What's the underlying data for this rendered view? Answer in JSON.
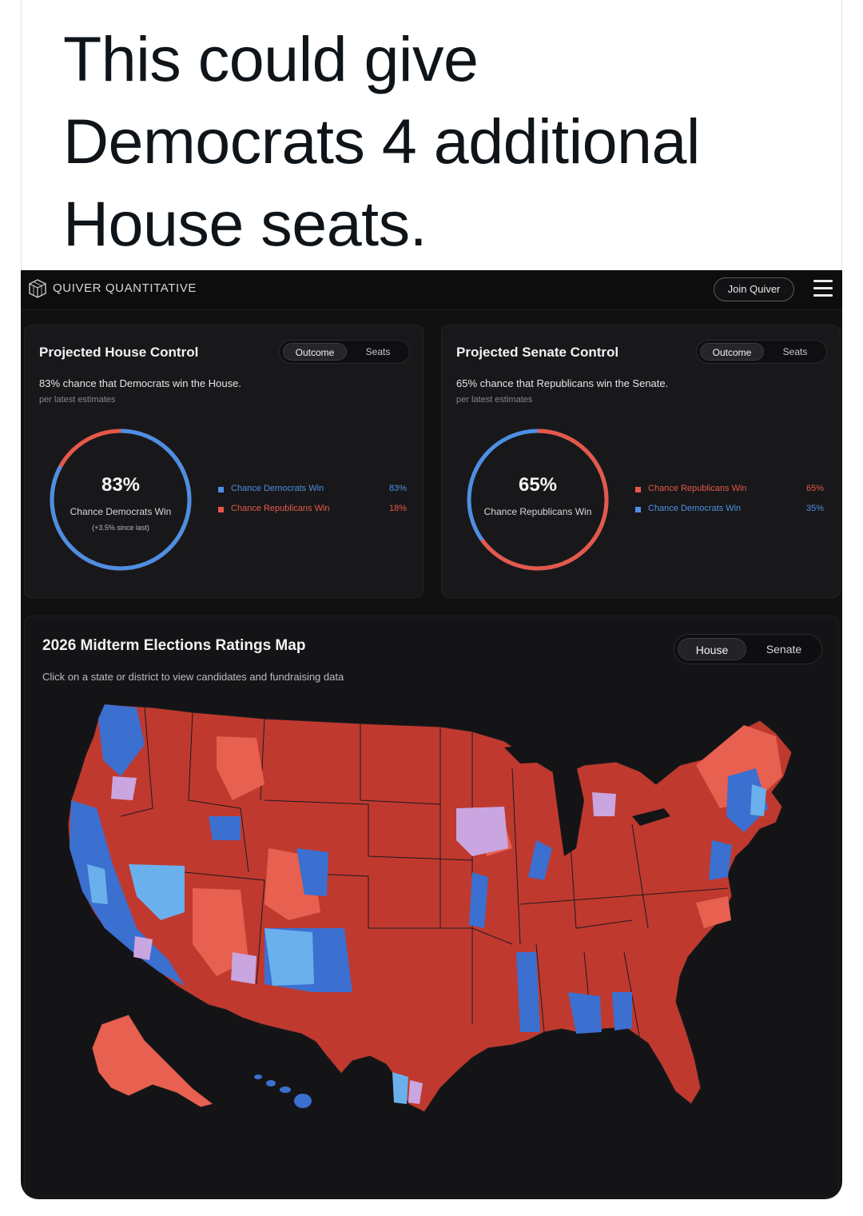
{
  "caption": {
    "text": "This could give Democrats 4 additional House seats."
  },
  "topbar": {
    "brand": "QUIVER QUANTITATIVE",
    "join_label": "Join Quiver",
    "logo_icon": "cube-logo-icon",
    "menu_icon": "hamburger-menu-icon"
  },
  "house_card": {
    "title": "Projected House Control",
    "toggle": [
      "Outcome",
      "Seats"
    ],
    "active_toggle": "Outcome",
    "description": "83% chance that Democrats win the House.",
    "subtext": "per latest estimates",
    "donut_pct": "83%",
    "donut_label": "Chance Democrats Win",
    "donut_change": "(+3.5% since last)",
    "legend": [
      {
        "label": "Chance Democrats Win",
        "value": "83%",
        "color": "#4d8fe3"
      },
      {
        "label": "Chance Republicans Win",
        "value": "18%",
        "color": "#e5584a"
      }
    ],
    "share_blue": 0.83
  },
  "senate_card": {
    "title": "Projected Senate Control",
    "toggle": [
      "Outcome",
      "Seats"
    ],
    "active_toggle": "Outcome",
    "description": "65% chance that Republicans win the Senate.",
    "subtext": "per latest estimates",
    "donut_pct": "65%",
    "donut_label": "Chance Republicans Win",
    "legend": [
      {
        "label": "Chance Republicans Win",
        "value": "65%",
        "color": "#e5584a"
      },
      {
        "label": "Chance Democrats Win",
        "value": "35%",
        "color": "#4d8fe3"
      }
    ],
    "share_red": 0.65
  },
  "map_card": {
    "title": "2026 Midterm Elections Ratings Map",
    "subtitle": "Click on a state or district to view candidates and fundraising data",
    "toggle": [
      "House",
      "Senate"
    ],
    "active_toggle": "House"
  },
  "colors": {
    "safe_rep": "#c0392f",
    "lean_rep": "#e8604f",
    "tossup": "#c9a6e0",
    "lean_dem": "#6ab0ec",
    "safe_dem": "#3b6fd0",
    "blue": "#4d8fe3",
    "red": "#e5584a"
  }
}
